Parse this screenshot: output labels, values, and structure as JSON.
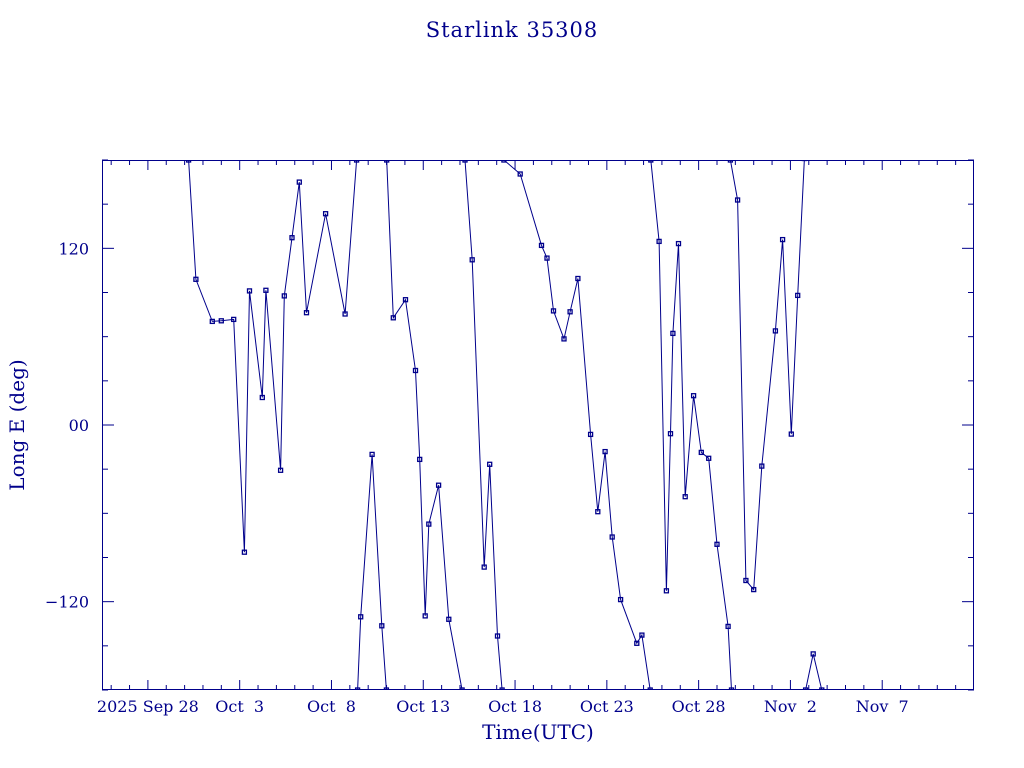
{
  "chart_data": {
    "type": "scatter",
    "title": "Starlink 35308",
    "xlabel": "Time(UTC)",
    "ylabel": "Long E (deg)",
    "ylim": [
      -180,
      180
    ],
    "xlim": [
      "2025-09-25T12:00",
      "2025-11-12T00:00"
    ],
    "x_ticks": [
      {
        "label": "2025 Sep 28",
        "date": "2025-09-28"
      },
      {
        "label": "Oct  3",
        "date": "2025-10-03"
      },
      {
        "label": "Oct  8",
        "date": "2025-10-08"
      },
      {
        "label": "Oct 13",
        "date": "2025-10-13"
      },
      {
        "label": "Oct 18",
        "date": "2025-10-18"
      },
      {
        "label": "Oct 23",
        "date": "2025-10-23"
      },
      {
        "label": "Oct 28",
        "date": "2025-10-28"
      },
      {
        "label": "Nov  2",
        "date": "2025-11-02"
      },
      {
        "label": "Nov  7",
        "date": "2025-11-07"
      }
    ],
    "y_ticks": [
      {
        "label": "−120",
        "value": -120
      },
      {
        "label": "00",
        "value": 0
      },
      {
        "label": "120",
        "value": 120
      }
    ],
    "grid": false,
    "series": [
      {
        "color": "#00008b",
        "marker": "square",
        "points": [
          {
            "x": "2025-09-30T05:16",
            "y": 180.0
          },
          {
            "x": "2025-09-30T14:42",
            "y": 99.0
          },
          {
            "x": "2025-10-01T12:11",
            "y": 70.4
          },
          {
            "x": "2025-10-02T00:00",
            "y": 70.8
          },
          {
            "x": "2025-10-02T16:14",
            "y": 71.7
          },
          {
            "x": "2025-10-03T06:07",
            "y": -86.4
          },
          {
            "x": "2025-10-03T12:51",
            "y": 91.1
          },
          {
            "x": "2025-10-04T05:34",
            "y": 18.7
          },
          {
            "x": "2025-10-04T10:17",
            "y": 91.5
          },
          {
            "x": "2025-10-05T05:33",
            "y": -30.8
          },
          {
            "x": "2025-10-05T10:16",
            "y": 87.7
          },
          {
            "x": "2025-10-05T20:26",
            "y": 127.2
          },
          {
            "x": "2025-10-06T05:53",
            "y": 165.0
          },
          {
            "x": "2025-10-06T15:20",
            "y": 76.3
          },
          {
            "x": "2025-10-07T16:22",
            "y": 143.5
          },
          {
            "x": "2025-10-08T17:51",
            "y": 75.4
          },
          {
            "x": "2025-10-09T08:54",
            "y": 180.0
          }
        ]
      },
      {
        "color": "#00008b",
        "marker": "square",
        "points": [
          {
            "x": "2025-10-09T10:10",
            "y": -180.0
          },
          {
            "x": "2025-10-09T14:10",
            "y": -130.3
          },
          {
            "x": "2025-10-10T05:03",
            "y": -20.0
          },
          {
            "x": "2025-10-10T17:49",
            "y": -136.4
          },
          {
            "x": "2025-10-10T23:51",
            "y": -180.0
          }
        ]
      },
      {
        "color": "#00008b",
        "marker": "square",
        "points": [
          {
            "x": "2025-10-11T00:15",
            "y": 180.0
          },
          {
            "x": "2025-10-11T08:50",
            "y": 72.8
          },
          {
            "x": "2025-10-12T00:49",
            "y": 85.1
          },
          {
            "x": "2025-10-12T13:52",
            "y": 37.0
          },
          {
            "x": "2025-10-12T19:18",
            "y": -23.4
          },
          {
            "x": "2025-10-13T02:30",
            "y": -129.7
          },
          {
            "x": "2025-10-13T07:13",
            "y": -67.3
          },
          {
            "x": "2025-10-13T20:00",
            "y": -40.9
          },
          {
            "x": "2025-10-14T09:27",
            "y": -132.0
          },
          {
            "x": "2025-10-15T02:46",
            "y": -180.0
          }
        ]
      },
      {
        "color": "#00008b",
        "marker": "square",
        "points": [
          {
            "x": "2025-10-15T06:33",
            "y": 180.0
          },
          {
            "x": "2025-10-15T16:00",
            "y": 112.2
          },
          {
            "x": "2025-10-16T07:42",
            "y": -96.5
          },
          {
            "x": "2025-10-16T14:54",
            "y": -26.7
          },
          {
            "x": "2025-10-17T01:04",
            "y": -143.3
          },
          {
            "x": "2025-10-17T07:02",
            "y": -180.0
          }
        ]
      },
      {
        "color": "#00008b",
        "marker": "square",
        "points": [
          {
            "x": "2025-10-17T09:23",
            "y": 180.0
          },
          {
            "x": "2025-10-18T06:45",
            "y": 170.5
          },
          {
            "x": "2025-10-19T10:32",
            "y": 122.0
          },
          {
            "x": "2025-10-19T17:45",
            "y": 113.4
          },
          {
            "x": "2025-10-20T02:18",
            "y": 77.5
          },
          {
            "x": "2025-10-20T16:03",
            "y": 58.5
          },
          {
            "x": "2025-10-21T00:00",
            "y": 76.9
          },
          {
            "x": "2025-10-21T10:10",
            "y": 99.5
          },
          {
            "x": "2025-10-22T02:47",
            "y": -6.4
          },
          {
            "x": "2025-10-22T12:13",
            "y": -58.9
          },
          {
            "x": "2025-10-22T21:41",
            "y": -18.1
          },
          {
            "x": "2025-10-23T07:04",
            "y": -76.1
          },
          {
            "x": "2025-10-23T18:00",
            "y": -118.6
          },
          {
            "x": "2025-10-24T15:06",
            "y": -148.3
          },
          {
            "x": "2025-10-24T21:50",
            "y": -142.7
          },
          {
            "x": "2025-10-25T08:43",
            "y": -180.0
          }
        ]
      },
      {
        "color": "#00008b",
        "marker": "square",
        "points": [
          {
            "x": "2025-10-25T09:30",
            "y": 180.0
          },
          {
            "x": "2025-10-25T20:20",
            "y": 124.7
          },
          {
            "x": "2025-10-26T05:48",
            "y": -112.6
          },
          {
            "x": "2025-10-26T11:14",
            "y": -5.9
          },
          {
            "x": "2025-10-26T14:24",
            "y": 62.2
          },
          {
            "x": "2025-10-26T21:37",
            "y": 123.2
          },
          {
            "x": "2025-10-27T06:30",
            "y": -48.7
          },
          {
            "x": "2025-10-27T17:23",
            "y": 19.9
          },
          {
            "x": "2025-10-28T03:33",
            "y": -18.6
          },
          {
            "x": "2025-10-28T13:09",
            "y": -22.6
          },
          {
            "x": "2025-10-29T00:02",
            "y": -81.0
          },
          {
            "x": "2025-10-29T14:34",
            "y": -136.8
          },
          {
            "x": "2025-10-29T18:57",
            "y": -180.0
          }
        ]
      },
      {
        "color": "#00008b",
        "marker": "square",
        "points": [
          {
            "x": "2025-10-29T17:30",
            "y": 180.0
          },
          {
            "x": "2025-10-30T03:00",
            "y": 152.8
          },
          {
            "x": "2025-10-30T13:46",
            "y": -105.6
          },
          {
            "x": "2025-10-31T00:00",
            "y": -111.8
          },
          {
            "x": "2025-10-31T10:37",
            "y": -27.9
          },
          {
            "x": "2025-11-01T04:19",
            "y": 63.9
          },
          {
            "x": "2025-11-01T13:43",
            "y": 125.9
          },
          {
            "x": "2025-11-02T01:06",
            "y": -6.2
          },
          {
            "x": "2025-11-02T09:34",
            "y": 88.0
          },
          {
            "x": "2025-11-02T18:19",
            "y": 181.0
          }
        ]
      },
      {
        "color": "#00008b",
        "marker": "square",
        "points": [
          {
            "x": "2025-11-02T19:53",
            "y": -180.0
          },
          {
            "x": "2025-11-03T05:45",
            "y": -155.5
          },
          {
            "x": "2025-11-03T17:00",
            "y": -180.0
          }
        ]
      }
    ]
  }
}
